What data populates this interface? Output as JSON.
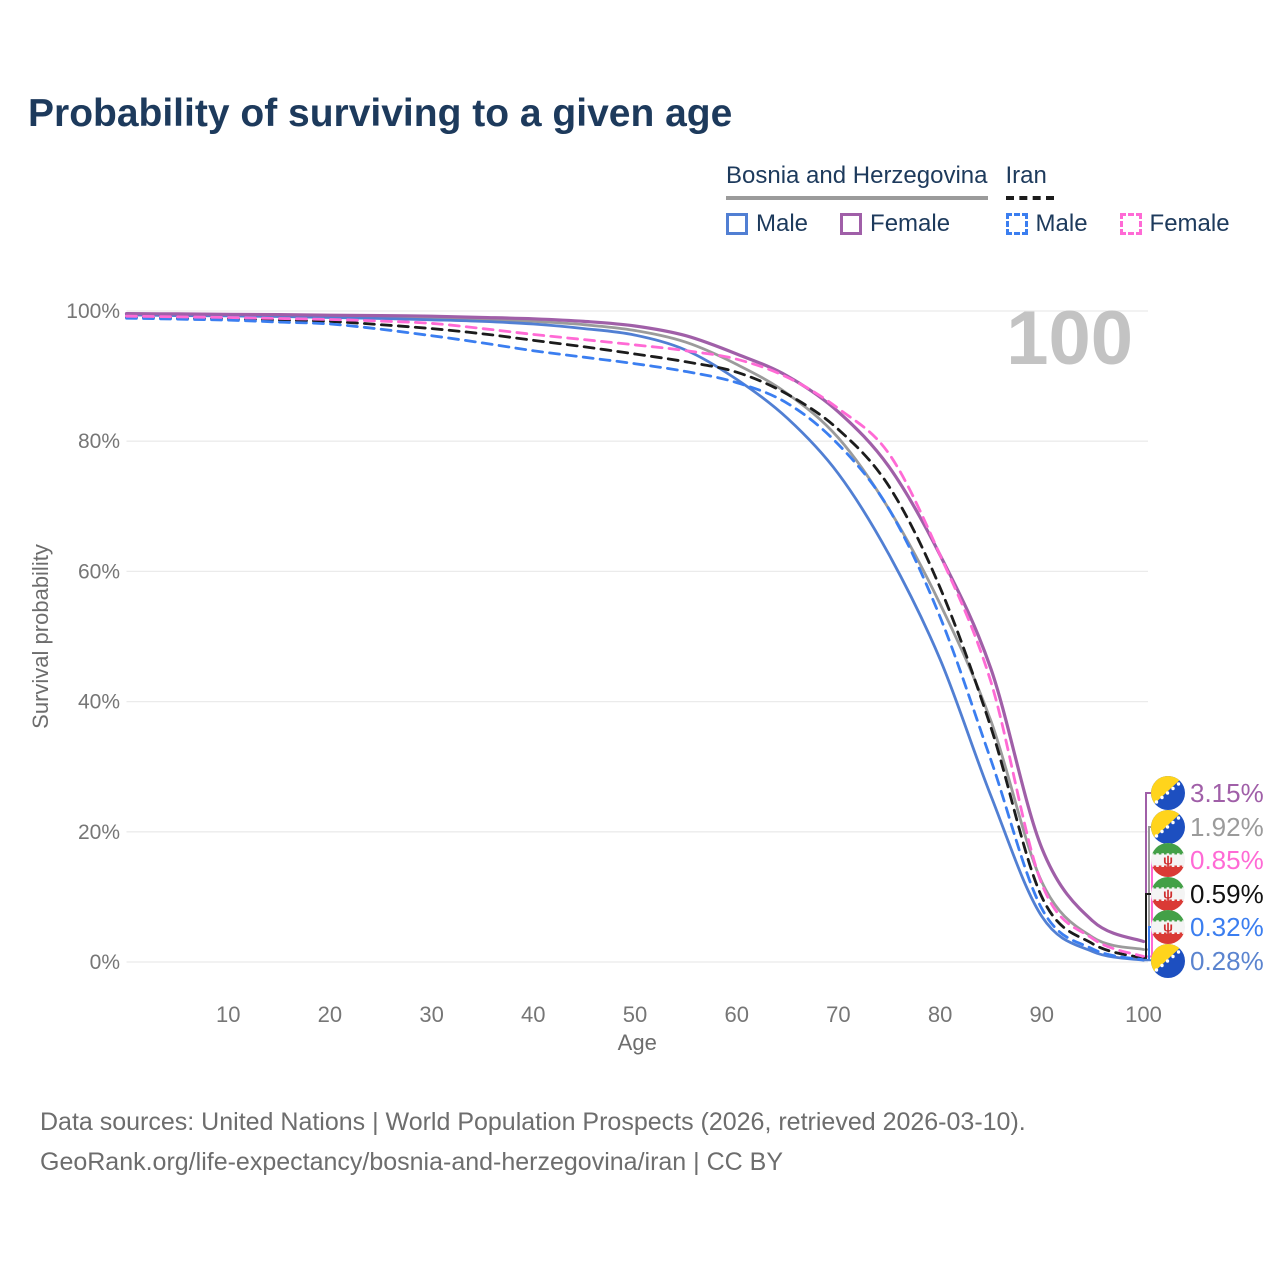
{
  "page": {
    "title": "Probability of surviving to a given age",
    "background": "#ffffff"
  },
  "legend": {
    "groups": [
      {
        "label": "Bosnia and Herzegovina",
        "line_style": "solid",
        "underline_color": "#9b9b9b",
        "items": [
          {
            "label": "Male",
            "color": "#517fd3"
          },
          {
            "label": "Female",
            "color": "#a05fa8"
          }
        ]
      },
      {
        "label": "Iran",
        "line_style": "dashed",
        "underline_color": "#1c1c1c",
        "items": [
          {
            "label": "Male",
            "color": "#3b7ef0"
          },
          {
            "label": "Female",
            "color": "#ff6ad5"
          }
        ]
      }
    ]
  },
  "chart_data": {
    "type": "line",
    "title": "Probability of surviving to a given age",
    "xlabel": "Age",
    "ylabel": "Survival probability",
    "xlim": [
      0,
      100
    ],
    "ylim": [
      0,
      100
    ],
    "grid": "horizontal",
    "legend_position": "top-right",
    "age_counter": "100",
    "x_ticks": [
      10,
      20,
      30,
      40,
      50,
      60,
      70,
      80,
      90,
      100
    ],
    "y_ticks": [
      "0%",
      "20%",
      "40%",
      "60%",
      "80%",
      "100%"
    ],
    "x": [
      0,
      5,
      10,
      15,
      20,
      25,
      30,
      35,
      40,
      45,
      50,
      55,
      60,
      65,
      70,
      75,
      80,
      85,
      90,
      95,
      100
    ],
    "series": [
      {
        "name": "Bosnia and Herzegovina — Both sexes",
        "country": "bosnia-and-herzegovina",
        "sex": "both",
        "color": "#9b9b9b",
        "dash": "solid",
        "values": [
          99.5,
          99.45,
          99.4,
          99.3,
          99.2,
          99.1,
          98.95,
          98.75,
          98.4,
          97.9,
          97.0,
          95.2,
          91.8,
          87.3,
          80.5,
          69.5,
          55.0,
          37.0,
          12.3,
          3.8,
          1.92
        ],
        "end_label": "1.92%",
        "end_label_color": "#9b9b9b",
        "label_row": 1
      },
      {
        "name": "Bosnia and Herzegovina — Male",
        "country": "bosnia-and-herzegovina",
        "sex": "male",
        "color": "#517fd3",
        "dash": "solid",
        "values": [
          99.4,
          99.3,
          99.25,
          99.15,
          99.0,
          98.85,
          98.65,
          98.4,
          98.0,
          97.3,
          96.3,
          94.0,
          89.5,
          83.5,
          75.0,
          62.5,
          46.5,
          25.5,
          7.0,
          1.6,
          0.28
        ],
        "end_label": "0.28%",
        "end_label_color": "#5b84cf",
        "label_row": 5
      },
      {
        "name": "Bosnia and Herzegovina — Female",
        "country": "bosnia-and-herzegovina",
        "sex": "female",
        "color": "#a05fa8",
        "dash": "solid",
        "values": [
          99.6,
          99.55,
          99.5,
          99.45,
          99.35,
          99.3,
          99.2,
          99.0,
          98.8,
          98.4,
          97.7,
          96.2,
          93.4,
          90.0,
          84.5,
          76.0,
          62.5,
          45.0,
          17.5,
          6.3,
          3.15
        ],
        "end_label": "3.15%",
        "end_label_color": "#a05fa8",
        "label_row": 0
      },
      {
        "name": "Iran — Both sexes",
        "country": "iran",
        "sex": "both",
        "color": "#1c1c1c",
        "dash": "dashed",
        "values": [
          99.05,
          98.9,
          98.8,
          98.6,
          98.4,
          97.9,
          97.3,
          96.5,
          95.5,
          94.5,
          93.4,
          92.2,
          90.6,
          87.2,
          81.8,
          73.0,
          57.5,
          36.0,
          10.0,
          2.8,
          0.59
        ],
        "end_label": "0.59%",
        "end_label_color": "#111111",
        "label_row": 3
      },
      {
        "name": "Iran — Male",
        "country": "iran",
        "sex": "male",
        "color": "#3b7ef0",
        "dash": "dashed",
        "values": [
          98.9,
          98.75,
          98.6,
          98.3,
          98.0,
          97.2,
          96.2,
          95.1,
          93.9,
          92.9,
          91.9,
          90.7,
          89.0,
          85.8,
          79.5,
          69.5,
          53.0,
          31.0,
          8.2,
          2.0,
          0.32
        ],
        "end_label": "0.32%",
        "end_label_color": "#3b7ef0",
        "label_row": 4
      },
      {
        "name": "Iran — Female",
        "country": "iran",
        "sex": "female",
        "color": "#ff6ad5",
        "dash": "dashed",
        "values": [
          99.2,
          99.1,
          99.0,
          98.85,
          98.7,
          98.45,
          98.1,
          97.3,
          96.4,
          95.6,
          94.8,
          93.9,
          92.6,
          89.8,
          85.0,
          78.0,
          62.5,
          43.0,
          12.0,
          3.6,
          0.85
        ],
        "end_label": "0.85%",
        "end_label_color": "#ff6ad5",
        "label_row": 2
      }
    ]
  },
  "footer": {
    "line1": "Data sources: United Nations | World Population Prospects (2026, retrieved 2026-03-10).",
    "line2": "GeoRank.org/life-expectancy/bosnia-and-herzegovina/iran | CC BY"
  }
}
